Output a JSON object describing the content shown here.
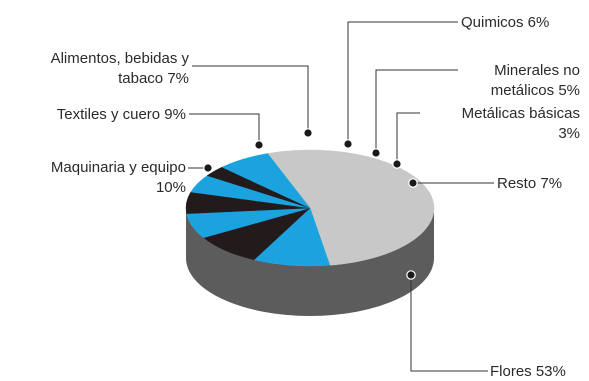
{
  "chart_data": {
    "type": "pie",
    "style": "3d",
    "title": "",
    "slices": [
      {
        "label": "Flores 53%",
        "value": 53,
        "color": "#c8c8c8"
      },
      {
        "label": "Maquinaria y equipo 10%",
        "label_lines": [
          "Maquinaria y equipo",
          "10%"
        ],
        "value": 10,
        "color": "#1ba3e0"
      },
      {
        "label": "Textiles y cuero 9%",
        "value": 9,
        "color": "#231a1c"
      },
      {
        "label": "Alimentos, bebidas y tabaco 7%",
        "label_lines": [
          "Alimentos, bebidas y",
          "tabaco 7%"
        ],
        "value": 7,
        "color": "#1ba3e0"
      },
      {
        "label": "Quimicos 6%",
        "value": 6,
        "color": "#231a1c"
      },
      {
        "label": "Minerales no metálicos 5%",
        "label_lines": [
          "Minerales no",
          "metálicos 5%"
        ],
        "value": 5,
        "color": "#1ba3e0"
      },
      {
        "label": "Metálicas básicas 3%",
        "label_lines": [
          "Metálicas básicas",
          "3%"
        ],
        "value": 3,
        "color": "#231a1c"
      },
      {
        "label": "Resto 7%",
        "value": 7,
        "color": "#1ba3e0"
      }
    ],
    "side_color": "#5c5c5c",
    "legend": "none"
  }
}
